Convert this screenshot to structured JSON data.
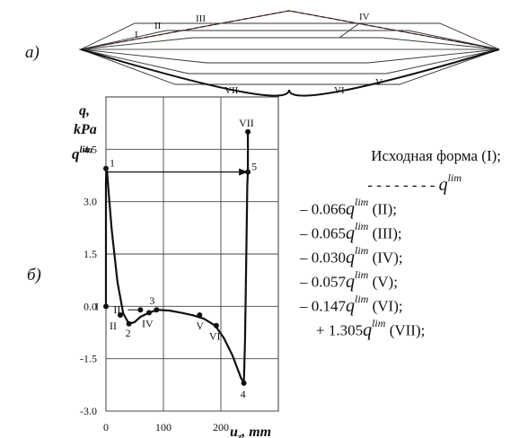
{
  "panel_a": {
    "label": "а)",
    "roman": [
      "I",
      "II",
      "III",
      "IV",
      "V",
      "VI",
      "VII"
    ]
  },
  "panel_b": {
    "label": "б)",
    "y_axis": {
      "label_top": "q,",
      "label_bottom": "kPa",
      "qlim_label": "q",
      "qlim_sup": "lim"
    },
    "x_axis": {
      "label_main": "u",
      "label_sub": "z",
      "label_unit": ", mm"
    }
  },
  "chart_data": {
    "type": "line",
    "xlabel": "u_z, mm",
    "ylabel": "q, kPa",
    "xlim": [
      0,
      300
    ],
    "ylim": [
      -3.0,
      6.0
    ],
    "x_ticks": [
      0,
      100,
      200
    ],
    "y_ticks": [
      -3.0,
      -1.5,
      0.0,
      1.5,
      3.0,
      4.5
    ],
    "y_tick_labels": [
      "-3.0",
      "-1.5",
      "0.0",
      "1.5",
      "3.0",
      "4.5"
    ],
    "x_tick_labels": [
      "0",
      "100",
      "200"
    ],
    "grid": true,
    "curve": {
      "x": [
        0,
        0,
        0.5,
        2,
        5,
        10,
        20,
        30,
        40,
        50,
        60,
        75,
        90,
        110,
        130,
        150,
        170,
        190,
        205,
        220,
        235,
        240,
        242,
        244,
        246,
        247
      ],
      "y": [
        0.0,
        3.5,
        3.95,
        3.85,
        3.2,
        2.2,
        0.7,
        -0.2,
        -0.5,
        -0.45,
        -0.3,
        -0.18,
        -0.1,
        -0.12,
        -0.18,
        -0.25,
        -0.35,
        -0.55,
        -0.9,
        -1.4,
        -2.05,
        -2.2,
        -1.0,
        1.2,
        3.5,
        3.85
      ]
    },
    "points": [
      {
        "label": "1",
        "x": 0,
        "y": 3.95
      },
      {
        "label": "2",
        "x": 40,
        "y": -0.5
      },
      {
        "label": "3",
        "x": 88,
        "y": -0.1
      },
      {
        "label": "4",
        "x": 240,
        "y": -2.2
      },
      {
        "label": "5",
        "x": 247,
        "y": 3.85
      }
    ],
    "stage_points": [
      {
        "label": "I",
        "x": 0,
        "y": 0.0
      },
      {
        "label": "II",
        "x": 25,
        "y": -0.25
      },
      {
        "label": "III",
        "x": 60,
        "y": -0.1
      },
      {
        "label": "IV",
        "x": 75,
        "y": -0.18
      },
      {
        "label": "V",
        "x": 163,
        "y": -0.25
      },
      {
        "label": "VI",
        "x": 192,
        "y": -0.55
      },
      {
        "label": "VII",
        "x": 247,
        "y": 5.0
      }
    ],
    "arrow": {
      "from_x": 0,
      "to_x": 247,
      "y": 3.85
    }
  },
  "legend": {
    "head": "Исходная форма (I);",
    "dash_text": "- - - - - - - -",
    "q": "q",
    "sup": "lim",
    "items": [
      {
        "coef": "– 0.066",
        "tag": "(II);"
      },
      {
        "coef": "– 0.065",
        "tag": "(III);"
      },
      {
        "coef": "– 0.030",
        "tag": "(IV);"
      },
      {
        "coef": "– 0.057",
        "tag": "(V);"
      },
      {
        "coef": "– 0.147",
        "tag": "(VI);"
      },
      {
        "coef": "+ 1.305",
        "tag": "(VII);"
      }
    ]
  }
}
